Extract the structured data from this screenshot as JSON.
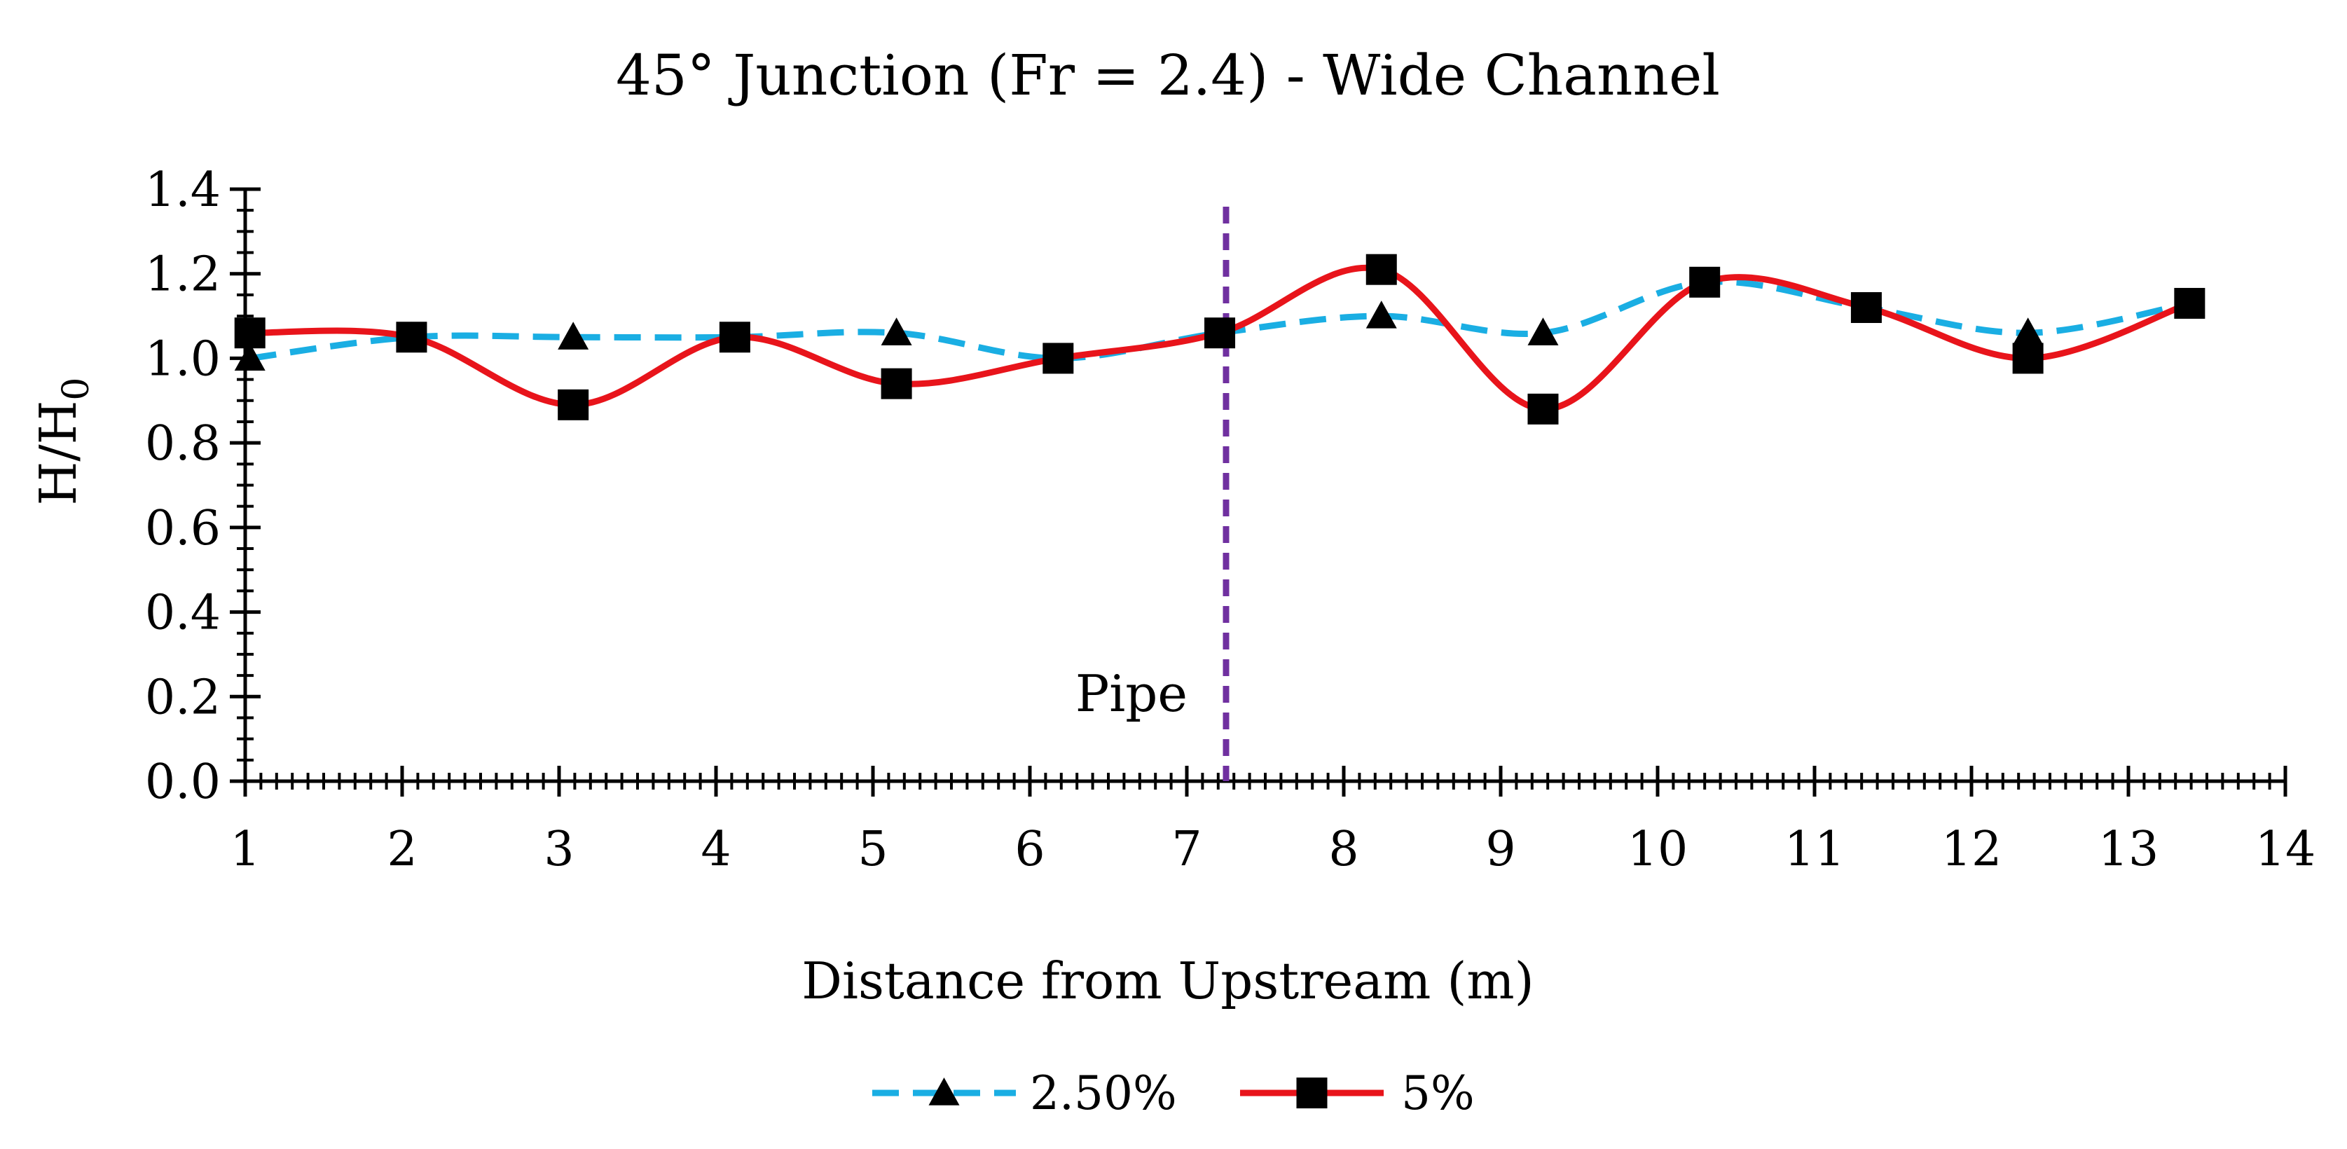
{
  "chart_data": {
    "type": "line",
    "title": "45° Junction (Fr = 2.4) - Wide Channel",
    "xlabel": "Distance from Upstream (m)",
    "ylabel": "H/H",
    "ylabel_subscript": "0",
    "xlim": [
      1,
      14
    ],
    "ylim": [
      0,
      1.4
    ],
    "xticks": [
      1,
      2,
      3,
      4,
      5,
      6,
      7,
      8,
      9,
      10,
      11,
      12,
      13,
      14
    ],
    "yticks": [
      0.0,
      0.2,
      0.4,
      0.6,
      0.8,
      1.0,
      1.2,
      1.4
    ],
    "xtick_labels": [
      "1",
      "2",
      "3",
      "4",
      "5",
      "6",
      "7",
      "8",
      "9",
      "10",
      "11",
      "12",
      "13",
      "14"
    ],
    "ytick_labels": [
      "0.0",
      "0.2",
      "0.4",
      "0.6",
      "0.8",
      "1.0",
      "1.2",
      "1.4"
    ],
    "grid": false,
    "legend_position": "bottom",
    "series": [
      {
        "name": "2.50%",
        "color": "#1AAEE3",
        "line_style": "dashed",
        "marker": "triangle",
        "x": [
          1.03,
          2.06,
          3.09,
          4.12,
          5.15,
          6.18,
          7.21,
          8.24,
          9.27,
          10.3,
          11.33,
          12.36,
          13.39
        ],
        "y": [
          1.0,
          1.05,
          1.05,
          1.05,
          1.06,
          1.0,
          1.06,
          1.1,
          1.06,
          1.18,
          1.12,
          1.06,
          1.13
        ]
      },
      {
        "name": "5%",
        "color": "#E8141B",
        "line_style": "solid",
        "marker": "square",
        "x": [
          1.03,
          2.06,
          3.09,
          4.12,
          5.15,
          6.18,
          7.21,
          8.24,
          9.27,
          10.3,
          11.33,
          12.36,
          13.39
        ],
        "y": [
          1.06,
          1.05,
          0.89,
          1.05,
          0.94,
          1.0,
          1.06,
          1.21,
          0.88,
          1.18,
          1.12,
          1.0,
          1.13
        ]
      }
    ],
    "annotations": [
      {
        "text": "Pipe",
        "x": 7.25,
        "line_color": "#7030A0",
        "line_style": "dashed"
      }
    ]
  }
}
